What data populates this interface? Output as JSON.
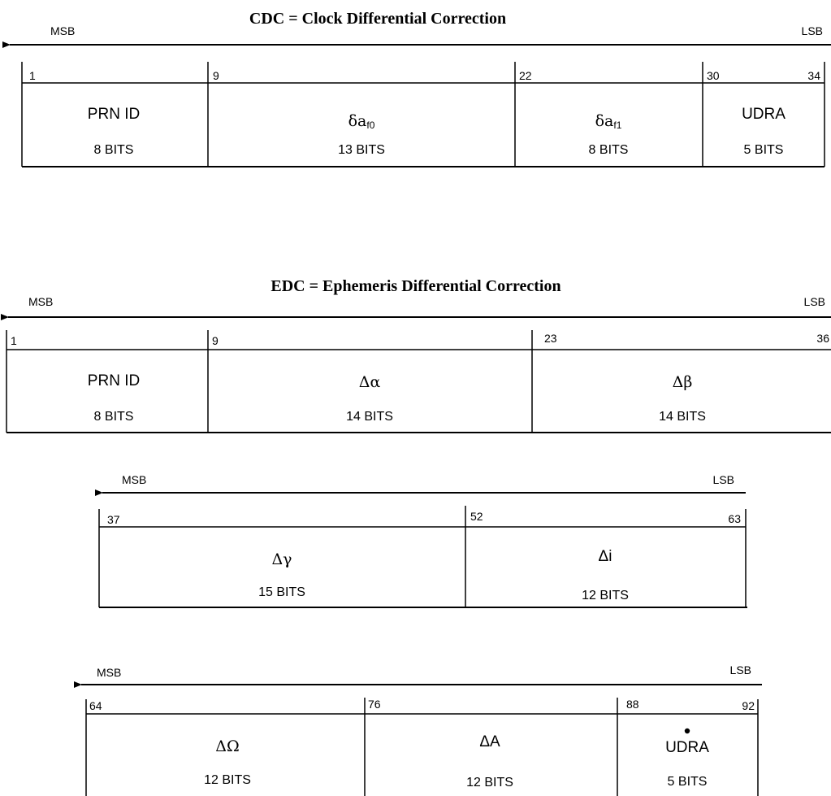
{
  "cdc": {
    "title": "CDC = Clock Differential Correction",
    "msb": "MSB",
    "lsb": "LSB",
    "bit_labels": {
      "b1": "1",
      "b9": "9",
      "b22": "22",
      "b30": "30",
      "b34": "34"
    },
    "fields": {
      "prn_id": {
        "name": "PRN ID",
        "bits": "8 BITS"
      },
      "daf0": {
        "symbol": "δa",
        "subscript": "f0",
        "bits": "13 BITS"
      },
      "daf1": {
        "symbol": "δa",
        "subscript": "f1",
        "bits": "8 BITS"
      },
      "udra": {
        "name": "UDRA",
        "bits": "5 BITS"
      }
    }
  },
  "edc": {
    "title": "EDC = Ephemeris Differential Correction",
    "row1": {
      "msb": "MSB",
      "lsb": "LSB",
      "bit_labels": {
        "b1": "1",
        "b9": "9",
        "b23": "23",
        "b36": "36"
      },
      "fields": {
        "prn_id": {
          "name": "PRN ID",
          "bits": "8 BITS"
        },
        "dalpha": {
          "name": "Δα",
          "bits": "14 BITS"
        },
        "dbeta": {
          "name": "Δβ",
          "bits": "14 BITS"
        }
      }
    },
    "row2": {
      "msb": "MSB",
      "lsb": "LSB",
      "bit_labels": {
        "b37": "37",
        "b52": "52",
        "b63": "63"
      },
      "fields": {
        "dgamma": {
          "name": "Δγ",
          "bits": "15 BITS"
        },
        "di": {
          "name": "Δi",
          "bits": "12 BITS"
        }
      }
    },
    "row3": {
      "msb": "MSB",
      "lsb": "LSB",
      "bit_labels": {
        "b64": "64",
        "b76": "76",
        "b88": "88",
        "b92": "92"
      },
      "fields": {
        "domega": {
          "name": "ΔΩ",
          "bits": "12 BITS"
        },
        "da": {
          "name": "ΔA",
          "bits": "12 BITS"
        },
        "udra_dot": {
          "name": "UDRA",
          "bits": "5 BITS"
        }
      }
    }
  }
}
